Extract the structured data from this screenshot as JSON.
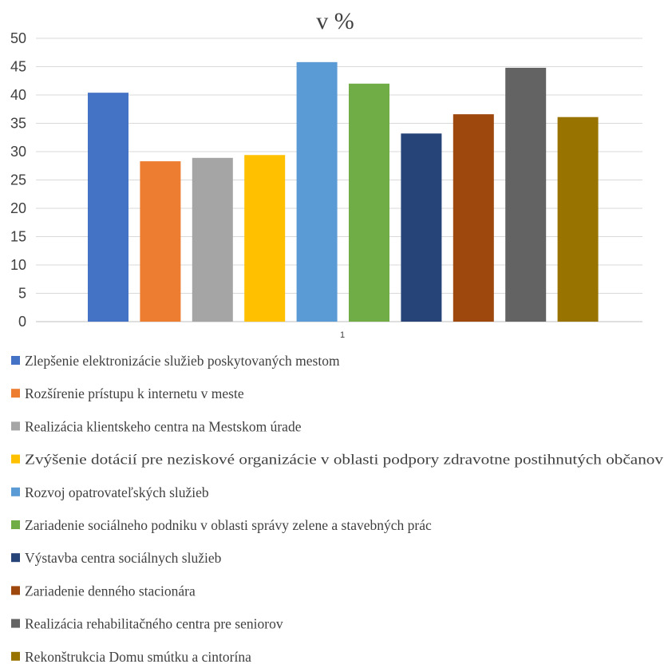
{
  "chart_data": {
    "type": "bar",
    "title": "v %",
    "categories": [
      "1"
    ],
    "ylim": [
      0,
      50
    ],
    "yticks": [
      0,
      5,
      10,
      15,
      20,
      25,
      30,
      35,
      40,
      45,
      50
    ],
    "grid": true,
    "legend_position": "bottom",
    "series": [
      {
        "name": "Zlepšenie elektronizácie služieb poskytovaných mestom",
        "values": [
          40.4
        ],
        "color": "#4472C4"
      },
      {
        "name": "Rozšírenie prístupu k internetu v meste",
        "values": [
          28.3
        ],
        "color": "#ED7D31"
      },
      {
        "name": "Realizácia klientskeho centra na Mestskom úrade",
        "values": [
          28.9
        ],
        "color": "#A5A5A5"
      },
      {
        "name": "Zvýšenie dotácií pre neziskové organizácie v oblasti podpory zdravotne postihnutých občanov",
        "values": [
          29.4
        ],
        "color": "#FFC000"
      },
      {
        "name": "Rozvoj opatrovateľských služieb",
        "values": [
          45.8
        ],
        "color": "#5B9BD5"
      },
      {
        "name": "Zariadenie sociálneho podniku v oblasti správy zelene a stavebných prác",
        "values": [
          42.0
        ],
        "color": "#70AD47"
      },
      {
        "name": "Výstavba centra sociálnych služieb",
        "values": [
          33.2
        ],
        "color": "#264478"
      },
      {
        "name": "Zariadenie denného stacionára",
        "values": [
          36.6
        ],
        "color": "#9E480E"
      },
      {
        "name": "Realizácia rehabilitačného centra pre seniorov",
        "values": [
          44.8
        ],
        "color": "#636363"
      },
      {
        "name": "Rekonštrukcia Domu smútku a cintorína",
        "values": [
          36.1
        ],
        "color": "#997300"
      }
    ]
  }
}
